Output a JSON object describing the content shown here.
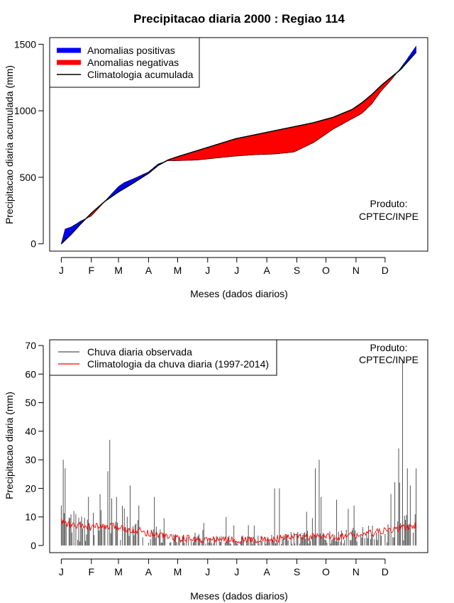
{
  "title": "Precipitacao diaria 2000 : Regiao 114",
  "watermark": [
    "Produto:",
    "CPTEC/INPE"
  ],
  "colors": {
    "positive": "#0000ff",
    "negative": "#ff0000",
    "observed": "#555555",
    "climatology": "#ff0000"
  },
  "chart_data": [
    {
      "type": "area",
      "ylabel": "Precipitacao diaria acumulada (mm)",
      "xlabel": "Meses (dados diarios)",
      "month_labels": [
        "J",
        "F",
        "M",
        "A",
        "M",
        "J",
        "J",
        "A",
        "S",
        "O",
        "N",
        "D"
      ],
      "yticks": [
        0,
        500,
        1000,
        1500
      ],
      "ylim": [
        -55,
        1550
      ],
      "xlim": [
        -12,
        378
      ],
      "legend": [
        {
          "label": "Anomalias positivas",
          "kind": "thick",
          "color": "#0000ff"
        },
        {
          "label": "Anomalias negativas",
          "kind": "thick",
          "color": "#ff0000"
        },
        {
          "label": "Climatologia acumulada",
          "kind": "line",
          "color": "#000000"
        }
      ],
      "climatology_cumulative": {
        "days": [
          0,
          10,
          20,
          31,
          45,
          59,
          75,
          90,
          100,
          110,
          120,
          140,
          160,
          180,
          200,
          220,
          240,
          260,
          280,
          300,
          310,
          320,
          330,
          340,
          350,
          366
        ],
        "values": [
          0,
          70,
          150,
          230,
          320,
          390,
          460,
          530,
          590,
          630,
          655,
          700,
          745,
          790,
          820,
          850,
          880,
          910,
          950,
          1010,
          1060,
          1120,
          1190,
          1250,
          1310,
          1440
        ]
      },
      "observed_cumulative": {
        "days": [
          0,
          4,
          10,
          20,
          31,
          45,
          59,
          65,
          75,
          90,
          100,
          110,
          120,
          140,
          160,
          180,
          200,
          220,
          240,
          260,
          280,
          290,
          300,
          310,
          320,
          330,
          340,
          350,
          356,
          366
        ],
        "values": [
          0,
          110,
          125,
          170,
          210,
          320,
          430,
          460,
          490,
          540,
          600,
          625,
          625,
          630,
          645,
          660,
          670,
          675,
          690,
          760,
          860,
          900,
          940,
          980,
          1050,
          1150,
          1230,
          1320,
          1380,
          1485
        ]
      }
    },
    {
      "type": "bar",
      "ylabel": "Precipitacao diaria (mm)",
      "xlabel": "Meses (dados diarios)",
      "month_labels": [
        "J",
        "F",
        "M",
        "A",
        "M",
        "J",
        "J",
        "A",
        "S",
        "O",
        "N",
        "D"
      ],
      "yticks": [
        0,
        10,
        20,
        30,
        40,
        50,
        60,
        70
      ],
      "ylim": [
        -2.5,
        72
      ],
      "xlim": [
        -12,
        378
      ],
      "legend": [
        {
          "label": "Chuva diaria observada",
          "kind": "line",
          "color": "#555555"
        },
        {
          "label": "Climatologia da chuva diaria (1997-2014)",
          "kind": "line",
          "color": "#ff0000"
        }
      ],
      "observed_peaks": {
        "days": [
          0,
          2,
          4,
          15,
          28,
          40,
          48,
          50,
          57,
          65,
          71,
          80,
          96,
          170,
          220,
          225,
          262,
          266,
          268,
          284,
          302,
          340,
          348,
          349,
          357,
          360,
          366
        ],
        "values": [
          14,
          30,
          27,
          11,
          17,
          18,
          26,
          37,
          17,
          13,
          21,
          14,
          17,
          10,
          20,
          20,
          27,
          30,
          17,
          16,
          14,
          18,
          34,
          22,
          27,
          21,
          27
        ]
      },
      "climatology_daily": {
        "days": [
          0,
          10,
          31,
          59,
          90,
          120,
          150,
          181,
          212,
          243,
          273,
          304,
          334,
          366
        ],
        "values": [
          8.5,
          7,
          6.5,
          6.5,
          4.5,
          2.5,
          2,
          2,
          2,
          3,
          3,
          3.5,
          5,
          7
        ]
      }
    }
  ]
}
